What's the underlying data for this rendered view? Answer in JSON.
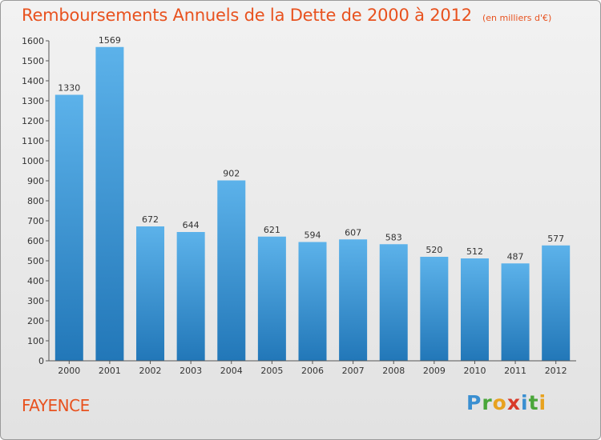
{
  "title": "Remboursements Annuels de la Dette de 2000 à 2012",
  "subtitle": "(en milliers d'€)",
  "location": "FAYENCE",
  "logo": {
    "letters": [
      "P",
      "r",
      "o",
      "x",
      "i",
      "t",
      "i"
    ],
    "colors": [
      "#3a8fd1",
      "#4aa63a",
      "#e8a21f",
      "#d83a2a",
      "#3a8fd1",
      "#4aa63a",
      "#e8a21f"
    ]
  },
  "colors": {
    "title": "#e8521f",
    "bar_top": "#5cb2ea",
    "bar_bottom": "#2277b8",
    "axis": "#555555"
  },
  "chart_data": {
    "type": "bar",
    "categories": [
      "2000",
      "2001",
      "2002",
      "2003",
      "2004",
      "2005",
      "2006",
      "2007",
      "2008",
      "2009",
      "2010",
      "2011",
      "2012"
    ],
    "values": [
      1330,
      1569,
      672,
      644,
      902,
      621,
      594,
      607,
      583,
      520,
      512,
      487,
      577
    ],
    "ylim": [
      0,
      1600
    ],
    "yticks": [
      0,
      100,
      200,
      300,
      400,
      500,
      600,
      700,
      800,
      900,
      1000,
      1100,
      1200,
      1300,
      1400,
      1500,
      1600
    ],
    "grid": false,
    "data_labels": true
  }
}
